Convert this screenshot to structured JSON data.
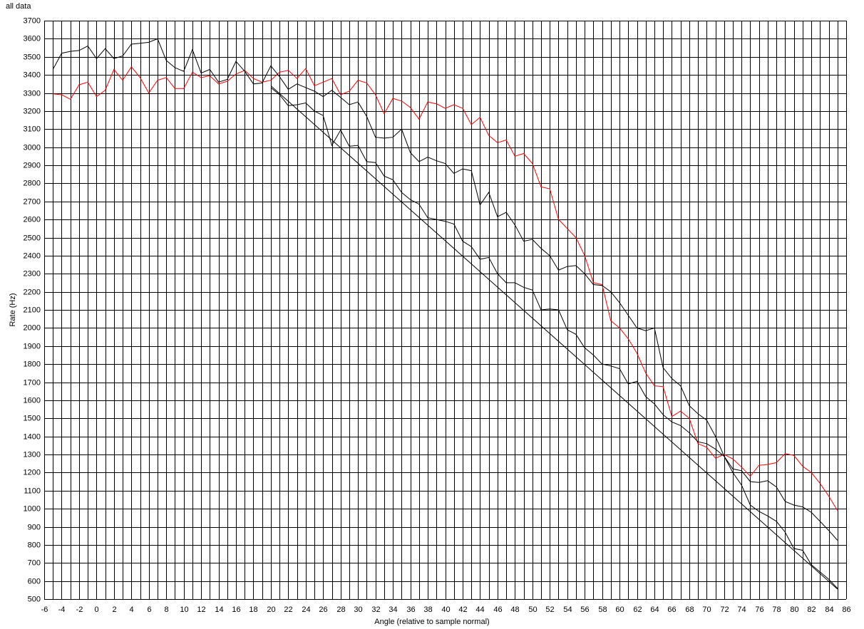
{
  "chart_data": {
    "type": "line",
    "title": "all data",
    "xlabel": "Angle (relative to sample normal)",
    "ylabel": "Rate (Hz)",
    "xlim": [
      -6,
      86
    ],
    "ylim": [
      500,
      3700
    ],
    "xticks": [
      -6,
      -4,
      -2,
      0,
      2,
      4,
      6,
      8,
      10,
      12,
      14,
      16,
      18,
      20,
      22,
      24,
      26,
      28,
      30,
      32,
      34,
      36,
      38,
      40,
      42,
      44,
      46,
      48,
      50,
      52,
      54,
      56,
      58,
      60,
      62,
      64,
      66,
      68,
      70,
      72,
      74,
      76,
      78,
      80,
      82,
      84,
      86
    ],
    "x_minor_ticks": [
      -5,
      -3,
      -1,
      1,
      3,
      5,
      7,
      9,
      11,
      13,
      15,
      17,
      19,
      21,
      23,
      25,
      27,
      29,
      31,
      33,
      35,
      37,
      39,
      41,
      43,
      45,
      47,
      49,
      51,
      53,
      55,
      57,
      59,
      61,
      63,
      65,
      67,
      69,
      71,
      73,
      75,
      77,
      79,
      81,
      83,
      85
    ],
    "yticks": [
      500,
      600,
      700,
      800,
      900,
      1000,
      1100,
      1200,
      1300,
      1400,
      1500,
      1600,
      1700,
      1800,
      1900,
      2000,
      2100,
      2200,
      2300,
      2400,
      2500,
      2600,
      2700,
      2800,
      2900,
      3000,
      3100,
      3200,
      3300,
      3400,
      3500,
      3600,
      3700
    ],
    "grid": true,
    "series": [
      {
        "color": "#ff0000",
        "x": [
          -5,
          -4,
          -3,
          -2,
          -1,
          0,
          1,
          2,
          3,
          4,
          5,
          6,
          7,
          8,
          9,
          10,
          11,
          12,
          13,
          14,
          15,
          16,
          17,
          18,
          19,
          20,
          21,
          22,
          23,
          24,
          25,
          26,
          27,
          28,
          29,
          30,
          31,
          32,
          33,
          34,
          35,
          36,
          37,
          38,
          39,
          40,
          41,
          42,
          43,
          44,
          45,
          46,
          47,
          48,
          49,
          50,
          51,
          52,
          53,
          54,
          55,
          56,
          57,
          58,
          59,
          60,
          61,
          62,
          63,
          64,
          65,
          66,
          67,
          68,
          69,
          70,
          71,
          72,
          73,
          74,
          75,
          76,
          77,
          78,
          79,
          80,
          81,
          82,
          83,
          84,
          85
        ],
        "values": [
          3295,
          3290,
          3265,
          3345,
          3360,
          3280,
          3315,
          3430,
          3370,
          3445,
          3385,
          3300,
          3370,
          3385,
          3325,
          3325,
          3415,
          3385,
          3395,
          3350,
          3365,
          3405,
          3425,
          3380,
          3360,
          3370,
          3415,
          3425,
          3380,
          3435,
          3340,
          3360,
          3380,
          3290,
          3310,
          3370,
          3355,
          3290,
          3185,
          3270,
          3255,
          3220,
          3155,
          3250,
          3240,
          3215,
          3235,
          3215,
          3125,
          3165,
          3065,
          3025,
          3040,
          2950,
          2965,
          2910,
          2780,
          2770,
          2600,
          2550,
          2500,
          2400,
          2250,
          2240,
          2040,
          2000,
          1940,
          1860,
          1750,
          1680,
          1675,
          1510,
          1540,
          1500,
          1360,
          1340,
          1280,
          1300,
          1275,
          1230,
          1180,
          1240,
          1245,
          1255,
          1305,
          1295,
          1235,
          1200,
          1140,
          1070,
          990
        ]
      },
      {
        "color": "#000000",
        "x": [
          -5,
          -4,
          -3,
          -2,
          -1,
          0,
          1,
          2,
          3,
          4,
          5,
          6,
          7,
          8,
          9,
          10,
          11,
          12,
          13,
          14,
          15,
          16,
          17,
          18,
          19,
          20,
          21,
          22,
          23,
          24,
          25,
          26,
          27,
          28,
          29,
          30,
          31,
          32,
          33,
          34,
          35,
          36,
          37,
          38,
          39,
          40,
          41,
          42,
          43,
          44,
          45,
          46,
          47,
          48,
          49,
          50,
          51,
          52,
          53,
          54,
          55,
          56,
          57,
          58,
          59,
          60,
          61,
          62,
          63,
          64,
          65,
          66,
          67,
          68,
          69,
          70,
          71,
          72,
          73,
          74,
          75,
          76,
          77,
          78,
          79,
          80,
          81,
          82,
          83,
          84,
          85
        ],
        "values": [
          3430,
          3520,
          3530,
          3535,
          3560,
          3490,
          3545,
          3490,
          3505,
          3570,
          3575,
          3580,
          3600,
          3480,
          3440,
          3420,
          3540,
          3410,
          3430,
          3360,
          3375,
          3475,
          3420,
          3350,
          3355,
          3450,
          3390,
          3320,
          3350,
          3330,
          3310,
          3280,
          3315,
          3275,
          3235,
          3250,
          3170,
          3055,
          3050,
          3055,
          3100,
          2970,
          2920,
          2945,
          2925,
          2910,
          2855,
          2880,
          2870,
          2680,
          2750,
          2615,
          2640,
          2570,
          2480,
          2490,
          2440,
          2400,
          2320,
          2340,
          2345,
          2300,
          2240,
          2235,
          2200,
          2140,
          2070,
          2000,
          1985,
          2000,
          1780,
          1720,
          1680,
          1570,
          1525,
          1490,
          1400,
          1290,
          1200,
          1130,
          1020,
          985,
          960,
          930,
          870,
          780,
          770,
          690,
          650,
          610,
          560
        ]
      },
      {
        "color": "#000000",
        "x": [
          20,
          21,
          22,
          23,
          24,
          25,
          26,
          27,
          28,
          29,
          30,
          31,
          32,
          33,
          34,
          35,
          36,
          37,
          38,
          39,
          40,
          41,
          42,
          43,
          44,
          45,
          46,
          47,
          48,
          49,
          50,
          51,
          52,
          53,
          54,
          55,
          56,
          57,
          58,
          59,
          60,
          61,
          62,
          63,
          64,
          65,
          66,
          67,
          68,
          69,
          70,
          71,
          72,
          73,
          74,
          75,
          76,
          77,
          78,
          79,
          80,
          81,
          82,
          83,
          84,
          85
        ],
        "values": [
          3330,
          3290,
          3230,
          3235,
          3245,
          3200,
          3175,
          3010,
          3095,
          3005,
          3010,
          2920,
          2915,
          2840,
          2820,
          2750,
          2710,
          2685,
          2610,
          2600,
          2590,
          2575,
          2480,
          2450,
          2380,
          2390,
          2300,
          2250,
          2250,
          2225,
          2210,
          2100,
          2105,
          2100,
          1990,
          1965,
          1890,
          1850,
          1800,
          1790,
          1775,
          1690,
          1705,
          1620,
          1580,
          1520,
          1480,
          1460,
          1420,
          1370,
          1360,
          1330,
          1290,
          1220,
          1210,
          1150,
          1145,
          1155,
          1120,
          1040,
          1020,
          1010,
          980,
          930,
          880,
          825
        ]
      },
      {
        "color": "#000000",
        "x": [
          20,
          85
        ],
        "values": [
          3340,
          555
        ]
      }
    ]
  }
}
